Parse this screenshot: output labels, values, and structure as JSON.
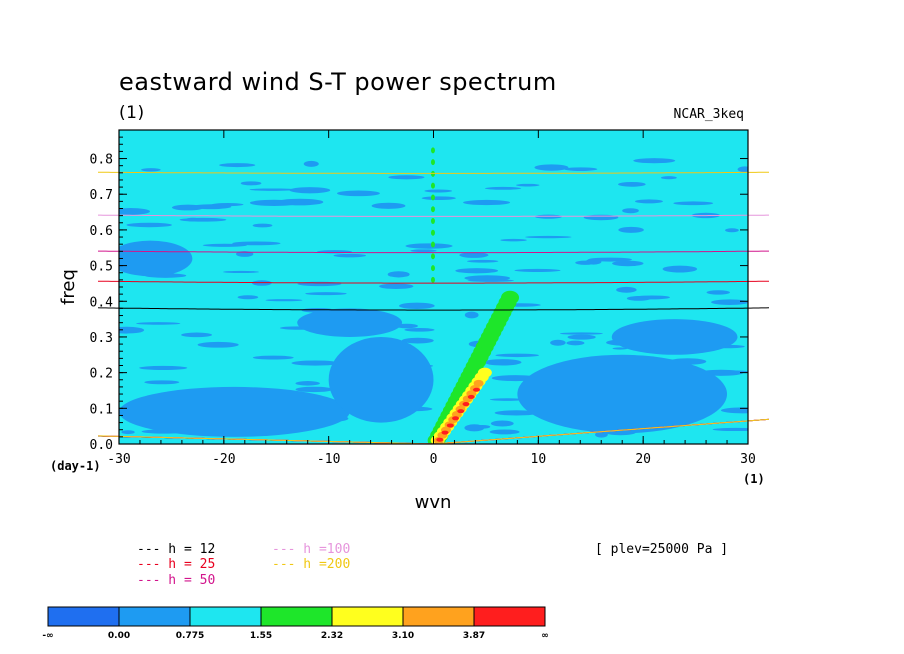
{
  "chart_data": {
    "type": "heatmap",
    "title": "eastward wind S-T power spectrum",
    "subtitle": "(1)",
    "dataset": "NCAR_3keq",
    "level_note": "[ plev=25000 Pa ]",
    "xlabel": "wvn",
    "ylabel": "freq",
    "x_unit": "(1)",
    "y_unit": "(day-1)",
    "xlim": [
      -30,
      30
    ],
    "ylim": [
      0.0,
      0.88
    ],
    "x_ticks": [
      -30,
      -20,
      -10,
      0,
      10,
      20,
      30
    ],
    "x_tick_labels": [
      "-30",
      "-20",
      "-10",
      "0",
      "10",
      "20",
      "30"
    ],
    "y_ticks": [
      0.0,
      0.1,
      0.2,
      0.3,
      0.4,
      0.5,
      0.6,
      0.7,
      0.8
    ],
    "y_tick_labels": [
      "0.0",
      "0.1",
      "0.2",
      "0.3",
      "0.4",
      "0.5",
      "0.6",
      "0.7",
      "0.8"
    ],
    "levels": [
      {
        "label": "-∞",
        "color": "#1f6ff0"
      },
      {
        "label": "0.00",
        "color": "#1e9bf2"
      },
      {
        "label": "0.775",
        "color": "#1ee6f0"
      },
      {
        "label": "1.55",
        "color": "#1ee62a"
      },
      {
        "label": "2.32",
        "color": "#ffff1e"
      },
      {
        "label": "3.10",
        "color": "#ffa21e"
      },
      {
        "label": "3.87",
        "color": "#ff1e1e"
      },
      {
        "label": "∞",
        "color": null
      }
    ],
    "background_level_color": "#1ee6f0",
    "dispersion_curves": [
      {
        "name": "h = 12",
        "h": 12,
        "color": "#000000"
      },
      {
        "name": "h = 25",
        "h": 25,
        "color": "#e8001e"
      },
      {
        "name": "h = 50",
        "h": 50,
        "color": "#d2148c"
      },
      {
        "name": "h =100",
        "h": 100,
        "color": "#e695dc"
      },
      {
        "name": "h =200",
        "h": 200,
        "color": "#f0c814"
      }
    ]
  }
}
